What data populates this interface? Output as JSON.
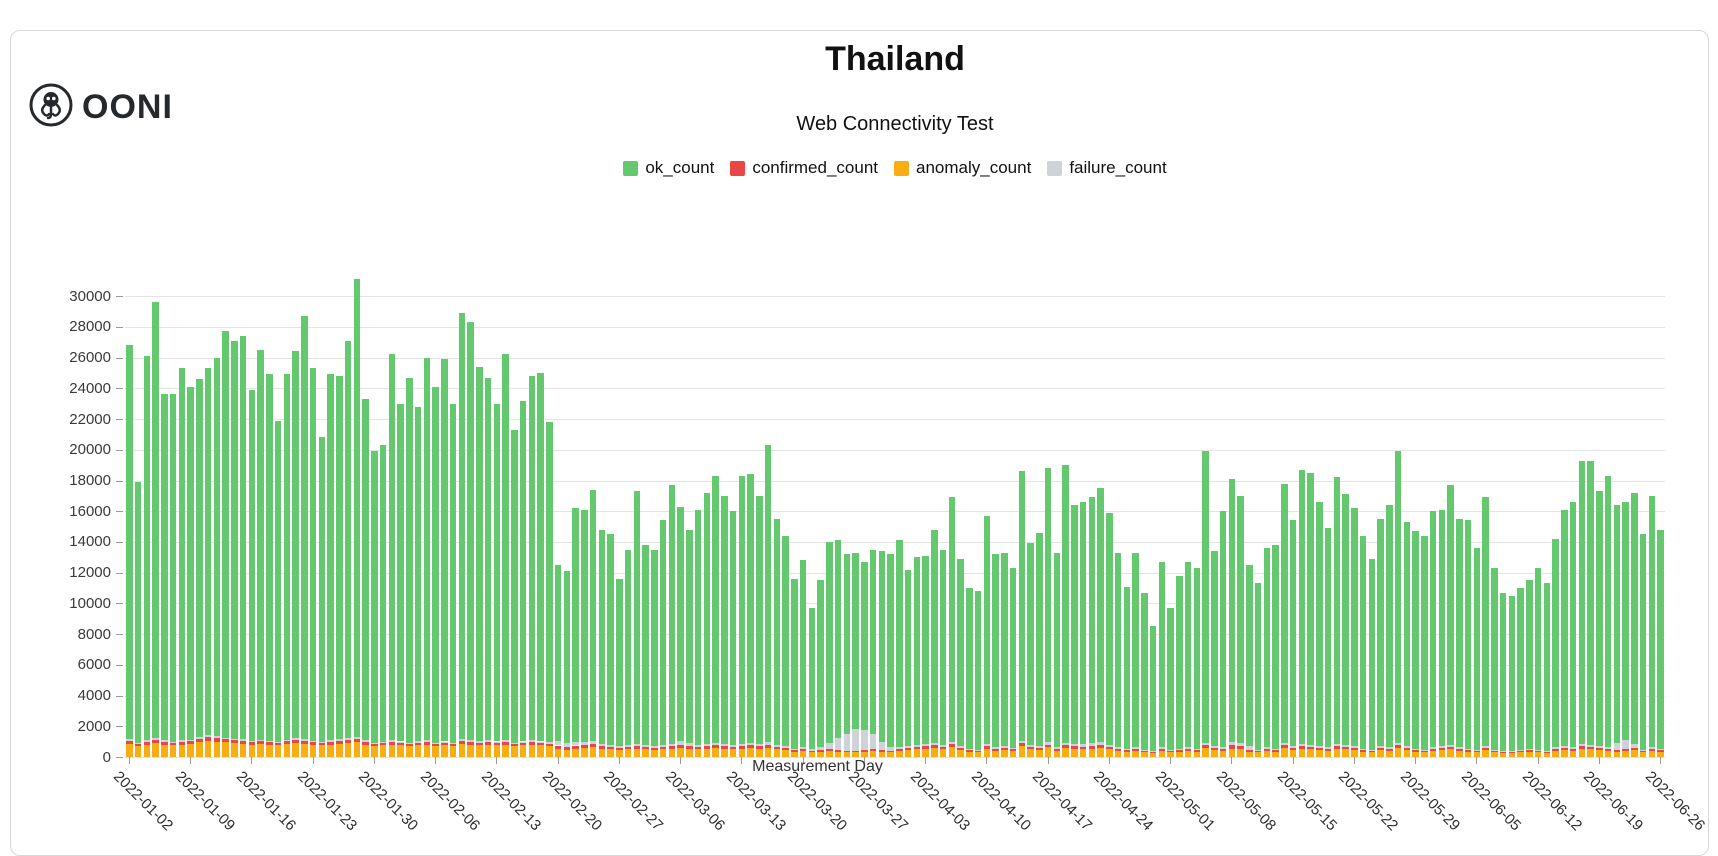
{
  "page": {
    "logo_text": "OONI"
  },
  "header": {
    "title": "Thailand",
    "subtitle": "Web Connectivity Test"
  },
  "chart_data": {
    "type": "bar",
    "stacked": true,
    "title": "Thailand",
    "subtitle": "Web Connectivity Test",
    "xlabel": "Measurement Day",
    "ylim": [
      0,
      33000
    ],
    "grid": true,
    "legend_position": "top",
    "y_ticks": [
      0,
      2000,
      4000,
      6000,
      8000,
      10000,
      12000,
      14000,
      16000,
      18000,
      20000,
      22000,
      24000,
      26000,
      28000,
      30000
    ],
    "x_tick_every": 7,
    "x_tick_labels": [
      "2022-01-02",
      "2022-01-09",
      "2022-01-16",
      "2022-01-23",
      "2022-01-30",
      "2022-02-06",
      "2022-02-13",
      "2022-02-20",
      "2022-02-27",
      "2022-03-06",
      "2022-03-13",
      "2022-03-20",
      "2022-03-27",
      "2022-04-03",
      "2022-04-10",
      "2022-04-17",
      "2022-04-24",
      "2022-05-01",
      "2022-05-08",
      "2022-05-15",
      "2022-05-22",
      "2022-05-29",
      "2022-06-05",
      "2022-06-12",
      "2022-06-19",
      "2022-06-26"
    ],
    "bar_stack_order": [
      "anomaly_count",
      "confirmed_count",
      "failure_count",
      "ok_count"
    ],
    "series": [
      {
        "name": "ok_count",
        "color": "#64c96e",
        "values": [
          25650,
          16970,
          25000,
          28330,
          22520,
          22610,
          24190,
          22970,
          23300,
          23850,
          24630,
          26430,
          25910,
          26230,
          22860,
          25360,
          23840,
          20910,
          23760,
          25180,
          27550,
          24230,
          19810,
          23810,
          23630,
          25860,
          29770,
          22220,
          18980,
          19310,
          25110,
          21990,
          23760,
          21780,
          24910,
          23160,
          24890,
          22060,
          27720,
          27190,
          24370,
          23600,
          21990,
          25110,
          20360,
          22190,
          23720,
          23990,
          20800,
          11450,
          11180,
          15250,
          15140,
          16350,
          13940,
          13710,
          10890,
          12720,
          16440,
          13030,
          12800,
          14620,
          16840,
          15280,
          13900,
          15310,
          16330,
          17360,
          16150,
          15220,
          17430,
          17460,
          16150,
          19340,
          14720,
          13690,
          11050,
          12130,
          9190,
          10850,
          13080,
          12840,
          11700,
          11500,
          10940,
          11980,
          12450,
          12560,
          13440,
          11510,
          12240,
          12270,
          13880,
          12740,
          15910,
          12210,
          10450,
          10320,
          14850,
          12580,
          12610,
          11700,
          17540,
          13140,
          13910,
          17830,
          12680,
          18080,
          15570,
          15770,
          15960,
          16550,
          15120,
          12680,
          10570,
          12680,
          10220,
          8090,
          12080,
          9220,
          11250,
          12080,
          11750,
          18980,
          12710,
          15380,
          17150,
          16100,
          11800,
          10820,
          12980,
          13250,
          16880,
          14710,
          17850,
          17740,
          15910,
          14280,
          17350,
          16340,
          15510,
          13850,
          12420,
          14810,
          15780,
          18980,
          14610,
          14150,
          13920,
          15380,
          15410,
          16940,
          14880,
          14850,
          13120,
          16210,
          11840,
          10310,
          10110,
          10540,
          10970,
          11840,
          10910,
          13580,
          15410,
          15980,
          18450,
          18540,
          16610,
          17680,
          15500,
          15490,
          16330,
          14040,
          16380,
          14270
        ]
      },
      {
        "name": "confirmed_count",
        "color": "#e84745",
        "values": [
          200,
          150,
          180,
          220,
          180,
          150,
          200,
          180,
          220,
          250,
          230,
          200,
          180,
          200,
          150,
          180,
          160,
          150,
          180,
          200,
          190,
          170,
          150,
          180,
          200,
          210,
          230,
          180,
          140,
          150,
          180,
          160,
          150,
          170,
          180,
          150,
          160,
          150,
          200,
          190,
          170,
          180,
          160,
          180,
          150,
          160,
          170,
          160,
          150,
          250,
          220,
          200,
          180,
          200,
          160,
          150,
          140,
          150,
          160,
          140,
          130,
          150,
          160,
          170,
          150,
          140,
          160,
          170,
          150,
          140,
          160,
          170,
          150,
          180,
          140,
          130,
          100,
          120,
          90,
          100,
          120,
          110,
          100,
          100,
          110,
          120,
          100,
          90,
          110,
          120,
          130,
          140,
          160,
          130,
          170,
          120,
          100,
          90,
          150,
          110,
          120,
          100,
          180,
          130,
          120,
          160,
          110,
          160,
          140,
          130,
          140,
          150,
          130,
          110,
          90,
          110,
          90,
          80,
          110,
          90,
          100,
          110,
          100,
          160,
          120,
          110,
          250,
          200,
          100,
          90,
          110,
          100,
          160,
          120,
          150,
          130,
          120,
          110,
          150,
          130,
          120,
          100,
          90,
          120,
          110,
          160,
          120,
          100,
          90,
          110,
          120,
          130,
          110,
          100,
          90,
          120,
          80,
          70,
          70,
          80,
          90,
          80,
          70,
          110,
          120,
          110,
          150,
          130,
          120,
          110,
          100,
          110,
          120,
          80,
          110,
          90
        ]
      },
      {
        "name": "anomaly_count",
        "color": "#f8ad15",
        "values": [
          850,
          700,
          800,
          900,
          800,
          750,
          800,
          850,
          950,
          1050,
          1000,
          950,
          900,
          850,
          800,
          850,
          800,
          750,
          850,
          900,
          850,
          800,
          750,
          800,
          850,
          900,
          950,
          800,
          700,
          750,
          800,
          750,
          700,
          750,
          800,
          700,
          750,
          700,
          850,
          800,
          750,
          800,
          750,
          800,
          700,
          750,
          800,
          750,
          700,
          500,
          450,
          550,
          600,
          650,
          550,
          500,
          450,
          500,
          550,
          500,
          450,
          500,
          550,
          600,
          550,
          500,
          550,
          600,
          550,
          500,
          550,
          600,
          550,
          600,
          500,
          450,
          350,
          400,
          300,
          350,
          400,
          350,
          300,
          300,
          350,
          400,
          350,
          300,
          400,
          450,
          500,
          550,
          600,
          500,
          650,
          450,
          350,
          300,
          550,
          400,
          450,
          400,
          700,
          500,
          450,
          650,
          400,
          600,
          550,
          500,
          550,
          600,
          500,
          400,
          350,
          400,
          300,
          250,
          400,
          300,
          350,
          400,
          350,
          600,
          450,
          400,
          550,
          500,
          350,
          300,
          400,
          350,
          600,
          450,
          550,
          500,
          450,
          400,
          550,
          500,
          450,
          350,
          300,
          450,
          400,
          600,
          450,
          350,
          300,
          400,
          450,
          500,
          400,
          350,
          300,
          450,
          300,
          250,
          250,
          300,
          350,
          300,
          250,
          400,
          450,
          400,
          550,
          500,
          450,
          400,
          350,
          400,
          450,
          300,
          400,
          350
        ]
      },
      {
        "name": "failure_count",
        "color": "#cdd3d9",
        "values": [
          100,
          80,
          120,
          150,
          100,
          90,
          110,
          100,
          130,
          150,
          140,
          120,
          110,
          120,
          90,
          110,
          100,
          90,
          110,
          120,
          110,
          100,
          90,
          110,
          120,
          130,
          150,
          100,
          80,
          90,
          110,
          100,
          90,
          100,
          110,
          90,
          100,
          90,
          130,
          120,
          110,
          120,
          100,
          110,
          90,
          100,
          110,
          100,
          150,
          300,
          250,
          200,
          180,
          200,
          150,
          140,
          120,
          130,
          150,
          130,
          120,
          130,
          150,
          250,
          200,
          150,
          160,
          170,
          150,
          140,
          160,
          170,
          150,
          180,
          140,
          130,
          100,
          150,
          120,
          200,
          400,
          800,
          1100,
          1400,
          1300,
          1000,
          500,
          250,
          150,
          120,
          130,
          140,
          160,
          130,
          170,
          120,
          100,
          90,
          150,
          110,
          120,
          100,
          180,
          130,
          120,
          160,
          110,
          160,
          140,
          200,
          250,
          200,
          150,
          110,
          90,
          110,
          90,
          80,
          110,
          90,
          100,
          110,
          100,
          160,
          120,
          110,
          150,
          200,
          250,
          90,
          110,
          100,
          160,
          120,
          150,
          130,
          120,
          110,
          150,
          130,
          120,
          100,
          90,
          120,
          110,
          160,
          120,
          100,
          90,
          110,
          120,
          130,
          110,
          100,
          90,
          120,
          80,
          70,
          70,
          80,
          90,
          80,
          70,
          110,
          120,
          110,
          150,
          130,
          120,
          110,
          450,
          600,
          300,
          80,
          110,
          90
        ]
      }
    ]
  }
}
